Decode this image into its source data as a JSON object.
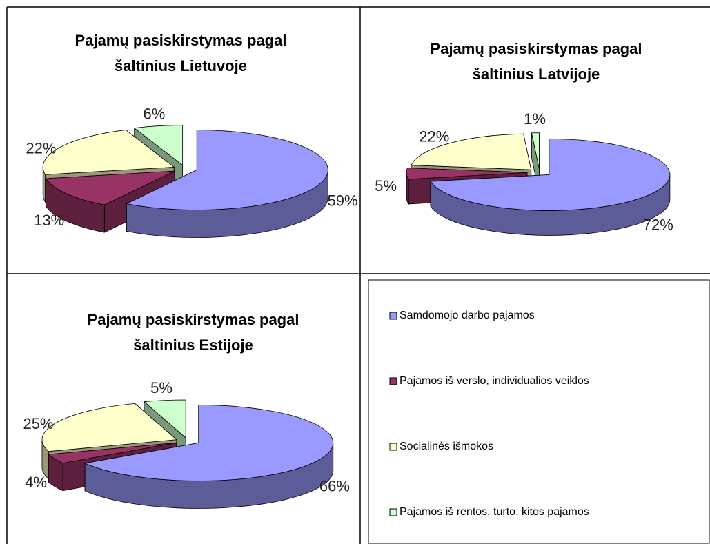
{
  "chart_data": [
    {
      "type": "pie",
      "title": [
        "Pajamų pasiskirstymas pagal",
        "šaltinius Lietuvoje"
      ],
      "values": [
        59,
        13,
        22,
        6
      ],
      "value_labels": [
        "59%",
        "13%",
        "22%",
        "6%"
      ]
    },
    {
      "type": "pie",
      "title": [
        "Pajamų pasiskirstymas pagal",
        "šaltinius Latvijoje"
      ],
      "values": [
        72,
        5,
        22,
        1
      ],
      "value_labels": [
        "72%",
        "5%",
        "22%",
        "1%"
      ]
    },
    {
      "type": "pie",
      "title": [
        "Pajamų pasiskirstymas pagal",
        "šaltinius Estijoje"
      ],
      "values": [
        66,
        4,
        25,
        5
      ],
      "value_labels": [
        "66%",
        "4%",
        "25%",
        "5%"
      ]
    }
  ],
  "legend": {
    "entries": [
      {
        "name": "Samdomojo darbo pajamos",
        "color": "#9999ff"
      },
      {
        "name": "Pajamos iš verslo, individualios veiklos",
        "color": "#993366"
      },
      {
        "name": "Socialinės išmokos",
        "color": "#ffffcc"
      },
      {
        "name": "Pajamos iš rentos, turto, kitos pajamos",
        "color": "#ccffcc"
      }
    ]
  }
}
